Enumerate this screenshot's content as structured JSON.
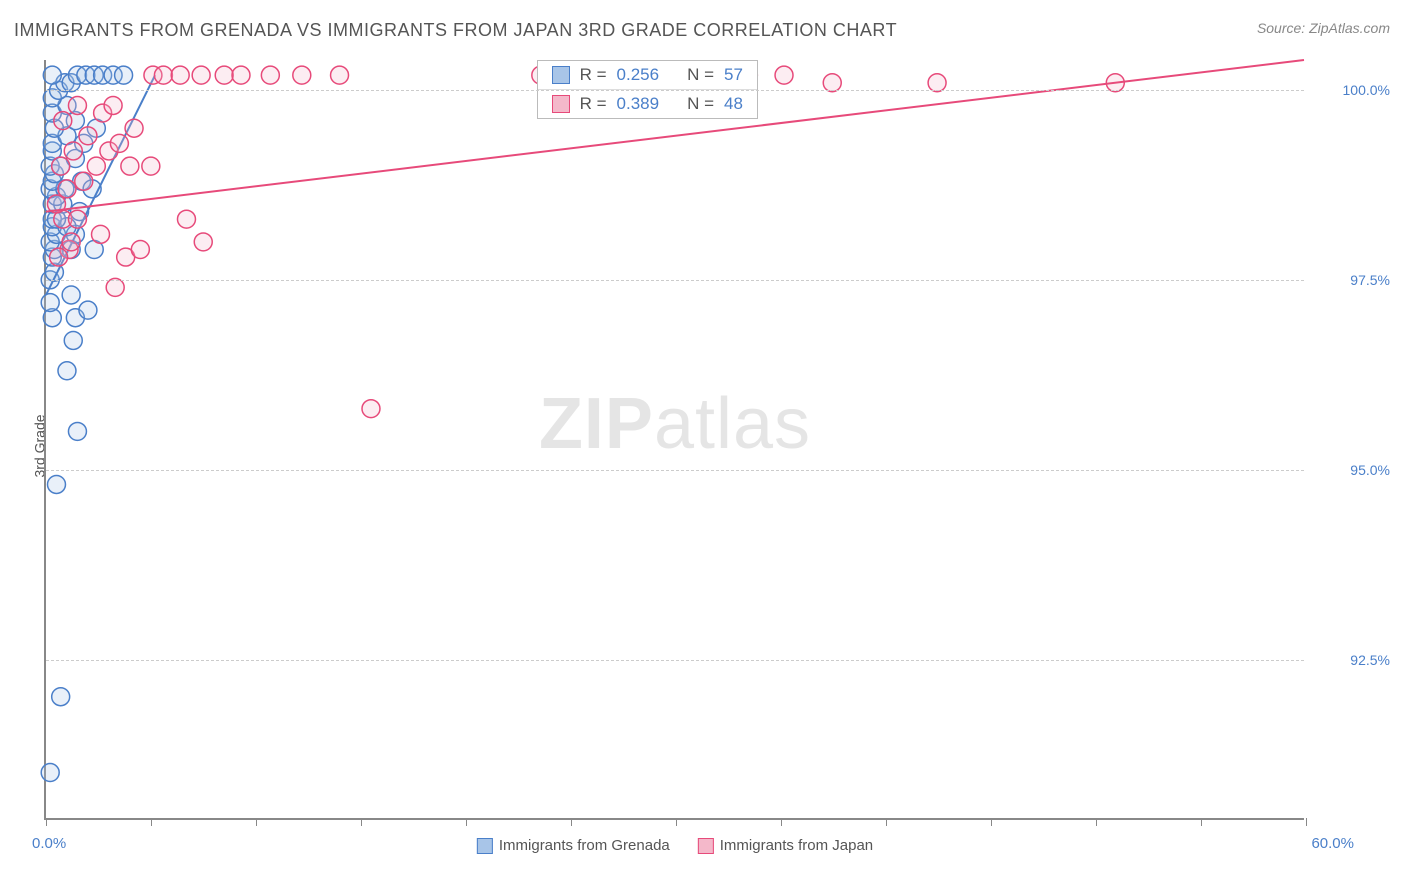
{
  "title": "IMMIGRANTS FROM GRENADA VS IMMIGRANTS FROM JAPAN 3RD GRADE CORRELATION CHART",
  "source_prefix": "Source: ",
  "source_name": "ZipAtlas.com",
  "y_axis_label": "3rd Grade",
  "watermark_zip": "ZIP",
  "watermark_atlas": "atlas",
  "chart": {
    "type": "scatter",
    "xlim": [
      0,
      60
    ],
    "ylim": [
      90.4,
      100.4
    ],
    "x_tick_positions": [
      0,
      5,
      10,
      15,
      20,
      25,
      30,
      35,
      40,
      45,
      50,
      55,
      60
    ],
    "x_label_min": "0.0%",
    "x_label_max": "60.0%",
    "y_ticks": [
      {
        "v": 92.5,
        "label": "92.5%"
      },
      {
        "v": 95.0,
        "label": "95.0%"
      },
      {
        "v": 97.5,
        "label": "97.5%"
      },
      {
        "v": 100.0,
        "label": "100.0%"
      }
    ],
    "background_color": "#ffffff",
    "grid_color": "#cccccc",
    "axis_color": "#888888",
    "marker_radius": 9,
    "marker_stroke_width": 1.5,
    "marker_fill_opacity": 0.25,
    "trend_line_width": 2,
    "series": [
      {
        "id": "grenada",
        "name": "Immigrants from Grenada",
        "color_stroke": "#4a7fc9",
        "color_fill": "#a8c5e8",
        "R": "0.256",
        "N": "57",
        "trend": {
          "x1": 0.0,
          "y1": 97.3,
          "x2": 5.2,
          "y2": 100.2
        },
        "points": [
          [
            0.2,
            91.0
          ],
          [
            0.7,
            92.0
          ],
          [
            0.5,
            94.8
          ],
          [
            1.5,
            95.5
          ],
          [
            1.3,
            96.7
          ],
          [
            1.4,
            97.0
          ],
          [
            0.3,
            97.0
          ],
          [
            2.0,
            97.1
          ],
          [
            1.0,
            96.3
          ],
          [
            0.2,
            97.2
          ],
          [
            1.2,
            97.3
          ],
          [
            0.2,
            97.5
          ],
          [
            0.4,
            97.6
          ],
          [
            0.3,
            97.8
          ],
          [
            0.4,
            97.9
          ],
          [
            0.2,
            98.0
          ],
          [
            1.2,
            97.9
          ],
          [
            1.4,
            98.1
          ],
          [
            0.5,
            98.1
          ],
          [
            0.3,
            98.2
          ],
          [
            1.0,
            98.2
          ],
          [
            0.3,
            98.3
          ],
          [
            0.5,
            98.3
          ],
          [
            2.3,
            97.9
          ],
          [
            1.6,
            98.4
          ],
          [
            0.3,
            98.5
          ],
          [
            0.8,
            98.5
          ],
          [
            0.5,
            98.6
          ],
          [
            0.2,
            98.7
          ],
          [
            0.9,
            98.7
          ],
          [
            0.3,
            98.8
          ],
          [
            1.7,
            98.8
          ],
          [
            0.4,
            98.9
          ],
          [
            2.2,
            98.7
          ],
          [
            0.2,
            99.0
          ],
          [
            0.7,
            99.0
          ],
          [
            1.4,
            99.1
          ],
          [
            0.3,
            99.2
          ],
          [
            0.3,
            99.3
          ],
          [
            1.8,
            99.3
          ],
          [
            1.0,
            99.4
          ],
          [
            0.4,
            99.5
          ],
          [
            1.4,
            99.6
          ],
          [
            2.4,
            99.5
          ],
          [
            0.3,
            99.7
          ],
          [
            1.0,
            99.8
          ],
          [
            0.3,
            99.9
          ],
          [
            0.6,
            100.0
          ],
          [
            0.9,
            100.1
          ],
          [
            1.2,
            100.1
          ],
          [
            1.5,
            100.2
          ],
          [
            1.9,
            100.2
          ],
          [
            2.3,
            100.2
          ],
          [
            2.7,
            100.2
          ],
          [
            3.2,
            100.2
          ],
          [
            3.7,
            100.2
          ],
          [
            0.3,
            100.2
          ]
        ]
      },
      {
        "id": "japan",
        "name": "Immigrants from Japan",
        "color_stroke": "#e74a7a",
        "color_fill": "#f4b8ca",
        "R": "0.389",
        "N": "48",
        "trend": {
          "x1": 0.0,
          "y1": 98.4,
          "x2": 60.0,
          "y2": 100.4
        },
        "points": [
          [
            1.1,
            97.9
          ],
          [
            3.3,
            97.4
          ],
          [
            0.6,
            97.8
          ],
          [
            1.2,
            98.0
          ],
          [
            0.8,
            98.3
          ],
          [
            1.5,
            98.3
          ],
          [
            0.5,
            98.5
          ],
          [
            2.6,
            98.1
          ],
          [
            3.8,
            97.8
          ],
          [
            4.5,
            97.9
          ],
          [
            6.7,
            98.3
          ],
          [
            7.5,
            98.0
          ],
          [
            1.0,
            98.7
          ],
          [
            1.8,
            98.8
          ],
          [
            0.7,
            99.0
          ],
          [
            2.4,
            99.0
          ],
          [
            1.3,
            99.2
          ],
          [
            3.0,
            99.2
          ],
          [
            3.5,
            99.3
          ],
          [
            2.0,
            99.4
          ],
          [
            4.2,
            99.5
          ],
          [
            0.8,
            99.6
          ],
          [
            2.7,
            99.7
          ],
          [
            1.5,
            99.8
          ],
          [
            4.0,
            99.0
          ],
          [
            5.0,
            99.0
          ],
          [
            3.2,
            99.8
          ],
          [
            15.5,
            95.8
          ],
          [
            5.1,
            100.2
          ],
          [
            5.6,
            100.2
          ],
          [
            6.4,
            100.2
          ],
          [
            7.4,
            100.2
          ],
          [
            8.5,
            100.2
          ],
          [
            9.3,
            100.2
          ],
          [
            10.7,
            100.2
          ],
          [
            12.2,
            100.2
          ],
          [
            14.0,
            100.2
          ],
          [
            23.6,
            100.2
          ],
          [
            24.9,
            100.2
          ],
          [
            26.3,
            100.2
          ],
          [
            28.0,
            100.2
          ],
          [
            29.6,
            100.2
          ],
          [
            31.3,
            100.2
          ],
          [
            33.5,
            100.2
          ],
          [
            35.2,
            100.2
          ],
          [
            37.5,
            100.1
          ],
          [
            42.5,
            100.1
          ],
          [
            51.0,
            100.1
          ]
        ]
      }
    ]
  },
  "stat_labels": {
    "R": "R =",
    "N": "N ="
  },
  "bottom_legend_series": [
    "grenada",
    "japan"
  ]
}
